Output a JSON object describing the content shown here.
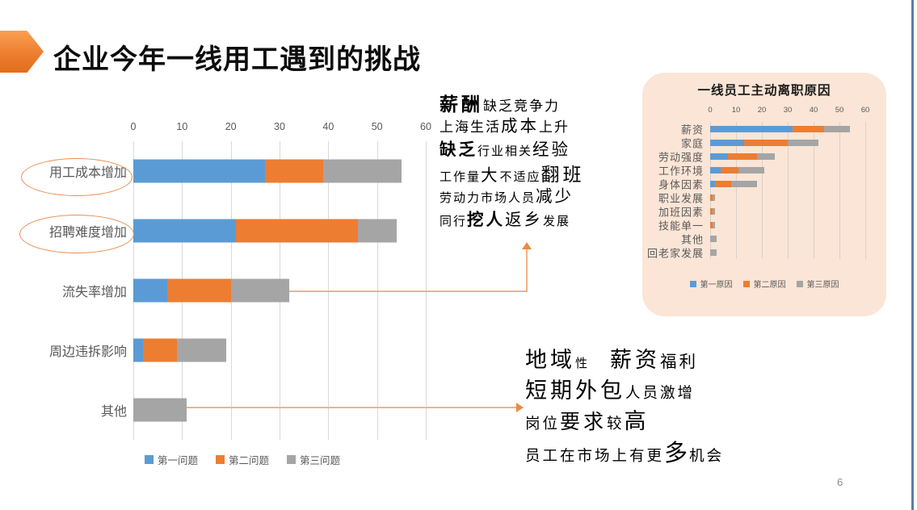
{
  "slide": {
    "title": "企业今年一线用工遇到的挑战",
    "page_number": "6"
  },
  "colors": {
    "series_blue": "#5B9BD5",
    "series_orange": "#ED7D31",
    "series_gray": "#A5A5A5",
    "panel_bg": "#FBE5D6",
    "connector": "#F5B183",
    "accent_orange": "#ED7D31"
  },
  "chart_data": [
    {
      "type": "bar",
      "orientation": "horizontal-stacked",
      "title": "",
      "categories": [
        "用工成本增加",
        "招聘难度增加",
        "流失率增加",
        "周边违拆影响",
        "其他"
      ],
      "series": [
        {
          "name": "第一问题",
          "color": "#5B9BD5",
          "values": [
            27,
            21,
            7,
            2,
            0
          ]
        },
        {
          "name": "第二问题",
          "color": "#ED7D31",
          "values": [
            12,
            25,
            13,
            7,
            0
          ]
        },
        {
          "name": "第三问题",
          "color": "#A5A5A5",
          "values": [
            16,
            8,
            12,
            10,
            11
          ]
        }
      ],
      "xlim": [
        0,
        60
      ],
      "ticks": [
        0,
        10,
        20,
        30,
        40,
        50,
        60
      ],
      "grid": true,
      "legend_position": "bottom",
      "circled_categories": [
        "用工成本增加",
        "招聘难度增加"
      ]
    },
    {
      "type": "bar",
      "orientation": "horizontal-stacked",
      "title": "一线员工主动离职原因",
      "categories": [
        "薪资",
        "家庭",
        "劳动强度",
        "工作环境",
        "身体因素",
        "职业发展",
        "加班因素",
        "技能单一",
        "其他",
        "回老家发展"
      ],
      "series": [
        {
          "name": "第一原因",
          "color": "#5B9BD5",
          "values": [
            32,
            13,
            7,
            4,
            2,
            0,
            0,
            0,
            0,
            0
          ]
        },
        {
          "name": "第二原因",
          "color": "#ED7D31",
          "values": [
            12,
            17,
            11,
            7,
            6,
            1,
            1,
            1,
            0,
            0
          ]
        },
        {
          "name": "第三原因",
          "color": "#A5A5A5",
          "values": [
            10,
            12,
            7,
            10,
            10,
            1,
            1,
            1,
            2.5,
            2.5
          ]
        }
      ],
      "xlim": [
        0,
        60
      ],
      "ticks": [
        0,
        10,
        20,
        30,
        40,
        50,
        60
      ],
      "grid": true,
      "legend_position": "bottom"
    }
  ],
  "annotations": {
    "middle_block": {
      "lines": [
        [
          {
            "t": "薪酬",
            "s": "xl",
            "b": true
          },
          {
            "t": "缺乏竞争力",
            "s": "md"
          }
        ],
        [
          {
            "t": "上海生活",
            "s": "md"
          },
          {
            "t": "成本",
            "s": "lg"
          },
          {
            "t": "上升",
            "s": "md"
          }
        ],
        [
          {
            "t": "缺乏",
            "s": "lg",
            "b": true
          },
          {
            "t": "行业相关",
            "s": "sm"
          },
          {
            "t": "经验",
            "s": "lg"
          }
        ],
        [
          {
            "t": "工作量",
            "s": "sm"
          },
          {
            "t": "大",
            "s": "lg"
          },
          {
            "t": "不适应",
            "s": "sm"
          },
          {
            "t": "翻班",
            "s": "xl"
          }
        ],
        [
          {
            "t": "劳动力市场人员",
            "s": "sm"
          },
          {
            "t": "减少",
            "s": "lg"
          }
        ],
        [
          {
            "t": "同行",
            "s": "sm"
          },
          {
            "t": "挖人",
            "s": "lg",
            "b": true
          },
          {
            "t": "返乡",
            "s": "lg"
          },
          {
            "t": "发展",
            "s": "sm"
          }
        ]
      ]
    },
    "bottom_block": {
      "lines": [
        [
          {
            "t": "地域",
            "s": "x3"
          },
          {
            "t": "性",
            "s": "sm"
          },
          {
            "t": "",
            "s": "gap"
          },
          {
            "t": "薪资",
            "s": "x3"
          },
          {
            "t": "福利",
            "s": "lg"
          }
        ],
        [
          {
            "t": "短期外包",
            "s": "x3"
          },
          {
            "t": "人员激增",
            "s": "ml"
          }
        ],
        [
          {
            "t": "岗位",
            "s": "ml"
          },
          {
            "t": "要求",
            "s": "x2"
          },
          {
            "t": "较",
            "s": "ml"
          },
          {
            "t": "高",
            "s": "x3"
          }
        ],
        [
          {
            "t": "员工在市场上有更",
            "s": "ml"
          },
          {
            "t": "多",
            "s": "x4"
          },
          {
            "t": "机会",
            "s": "ml"
          }
        ]
      ]
    }
  }
}
